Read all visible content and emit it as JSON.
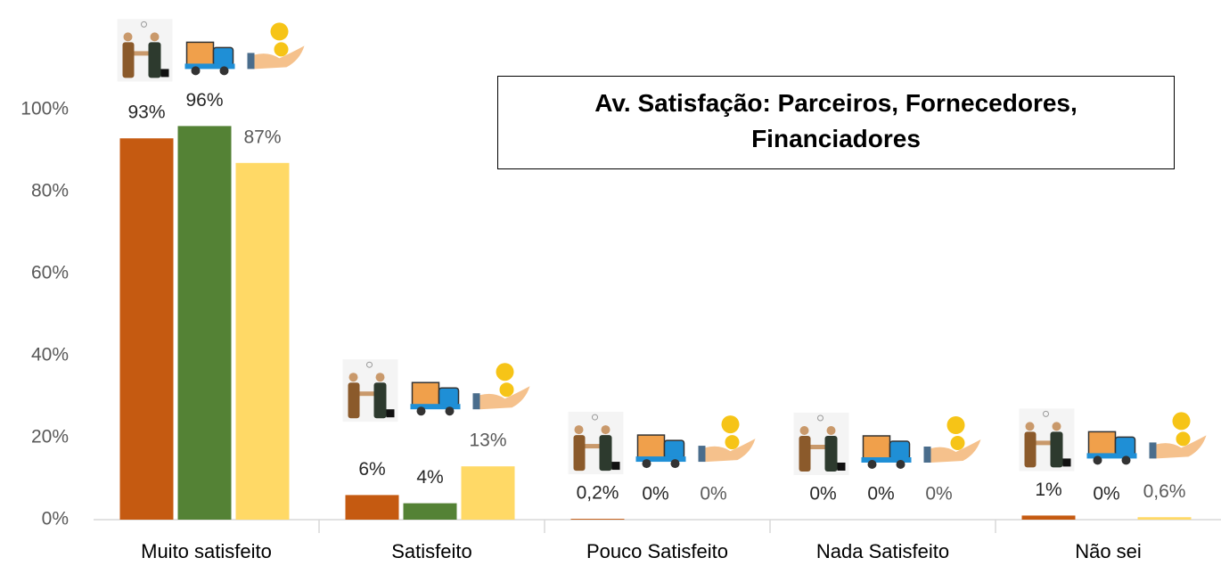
{
  "chart_data": {
    "type": "bar",
    "title": "Av. Satisfação: Parceiros, Fornecedores, Financiadores",
    "categories": [
      "Muito satisfeito",
      "Satisfeito",
      "Pouco Satisfeito",
      "Nada Satisfeito",
      "Não sei"
    ],
    "series": [
      {
        "color": "#c55a11",
        "values": [
          93,
          6,
          0.2,
          0,
          1
        ],
        "value_labels": [
          "93%",
          "6%",
          "0,2%",
          "0%",
          "1%"
        ]
      },
      {
        "color": "#548235",
        "values": [
          96,
          4,
          0,
          0,
          0
        ],
        "value_labels": [
          "96%",
          "4%",
          "0%",
          "0%",
          "0%"
        ]
      },
      {
        "color": "#ffd966",
        "values": [
          87,
          13,
          0,
          0,
          0.6
        ],
        "value_labels": [
          "87%",
          "13%",
          "0%",
          "0%",
          "0,6%"
        ]
      }
    ],
    "ylim": [
      0,
      100
    ],
    "yticks": [
      {
        "value": 0,
        "label": "0%"
      },
      {
        "value": 20,
        "label": "20%"
      },
      {
        "value": 40,
        "label": "40%"
      },
      {
        "value": 60,
        "label": "60%"
      },
      {
        "value": 80,
        "label": "80%"
      },
      {
        "value": 100,
        "label": "100%"
      }
    ],
    "grid": false
  }
}
